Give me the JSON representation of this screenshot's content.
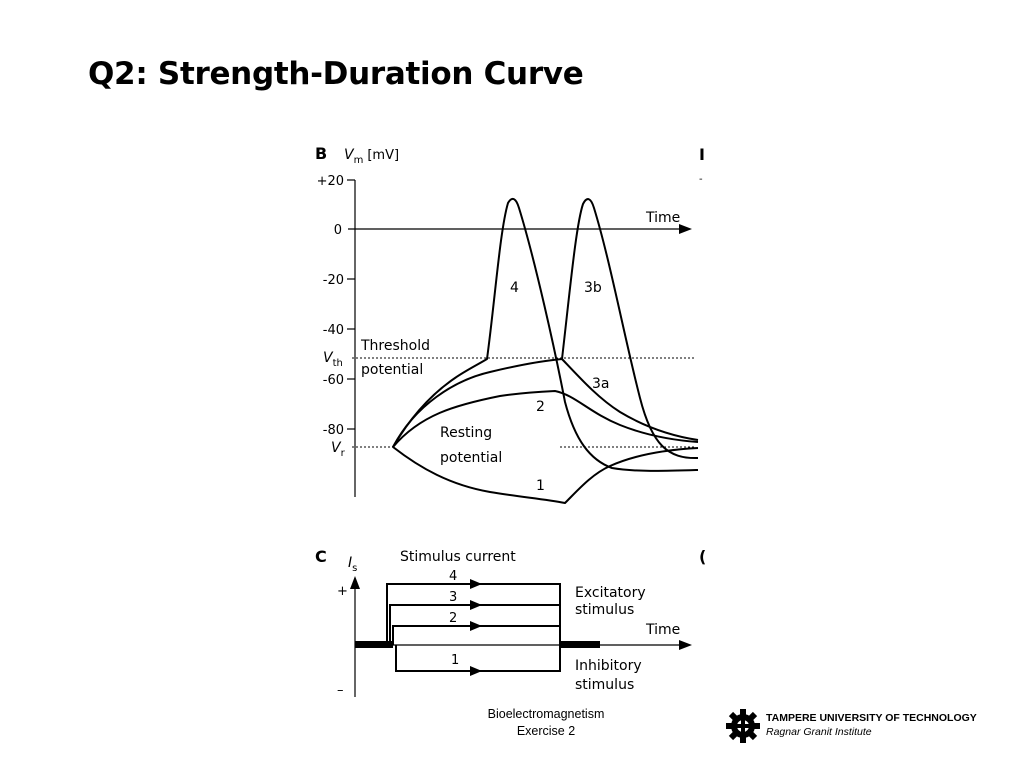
{
  "slide": {
    "title": "Q2: Strength-Duration Curve"
  },
  "figure_b": {
    "panel_label": "B",
    "y_axis_symbol": "V",
    "y_axis_subscript": "m",
    "y_axis_unit": "[mV]",
    "ticks": [
      {
        "label": "+20",
        "value": 20
      },
      {
        "label": "0",
        "value": 0
      },
      {
        "label": "-20",
        "value": -20
      },
      {
        "label": "-40",
        "value": -40
      },
      {
        "label": "-60",
        "value": -60
      },
      {
        "label": "-80",
        "value": -80
      }
    ],
    "time_label": "Time",
    "threshold_symbol": "V",
    "threshold_subscript": "th",
    "threshold_label_line1": "Threshold",
    "threshold_label_line2": "potential",
    "resting_symbol": "V",
    "resting_subscript": "r",
    "resting_label_line1": "Resting",
    "resting_label_line2": "potential",
    "curve_labels": [
      "4",
      "3b",
      "3a",
      "2",
      "1"
    ]
  },
  "figure_c": {
    "panel_label": "C",
    "y_axis_symbol": "I",
    "y_axis_subscript": "s",
    "title": "Stimulus current",
    "plus_label": "+",
    "minus_label": "–",
    "time_label": "Time",
    "excitatory_line1": "Excitatory",
    "excitatory_line2": "stimulus",
    "inhibitory_line1": "Inhibitory",
    "inhibitory_line2": "stimulus",
    "pulse_labels": [
      "4",
      "3",
      "2",
      "1"
    ]
  },
  "footer": {
    "course": "Bioelectromagnetism",
    "exercise": "Exercise 2",
    "institution": "TAMPERE UNIVERSITY OF TECHNOLOGY",
    "institute": "Ragnar Granit Institute",
    "logo_icon": "gear-icon"
  }
}
